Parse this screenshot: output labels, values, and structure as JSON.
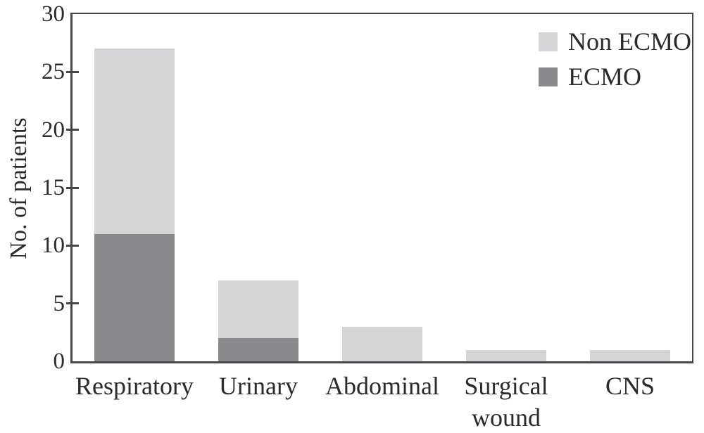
{
  "figure": {
    "background": "#ffffff",
    "axis_color": "#47474a",
    "text_color": "#2b2b2e"
  },
  "chart_data": {
    "type": "bar",
    "stacked": true,
    "title": "",
    "xlabel": "",
    "ylabel": "No. of patients",
    "ylim": [
      0,
      30
    ],
    "yticks": [
      0,
      5,
      10,
      15,
      20,
      25,
      30
    ],
    "grid": false,
    "categories": [
      "Respiratory",
      "Urinary",
      "Abdominal",
      "Surgical\nwound",
      "CNS"
    ],
    "series": [
      {
        "name": "ECMO",
        "color": "#898a8e",
        "values": [
          11,
          2,
          0,
          0,
          0
        ]
      },
      {
        "name": "Non ECMO",
        "color": "#d4d5d7",
        "values": [
          16,
          5,
          3,
          1,
          1
        ]
      }
    ],
    "totals": [
      27,
      7,
      3,
      1,
      1
    ],
    "legend": {
      "position": "top-right",
      "entries": [
        {
          "label": "Non ECMO",
          "color": "#d4d5d7"
        },
        {
          "label": "ECMO",
          "color": "#898a8e"
        }
      ]
    }
  }
}
